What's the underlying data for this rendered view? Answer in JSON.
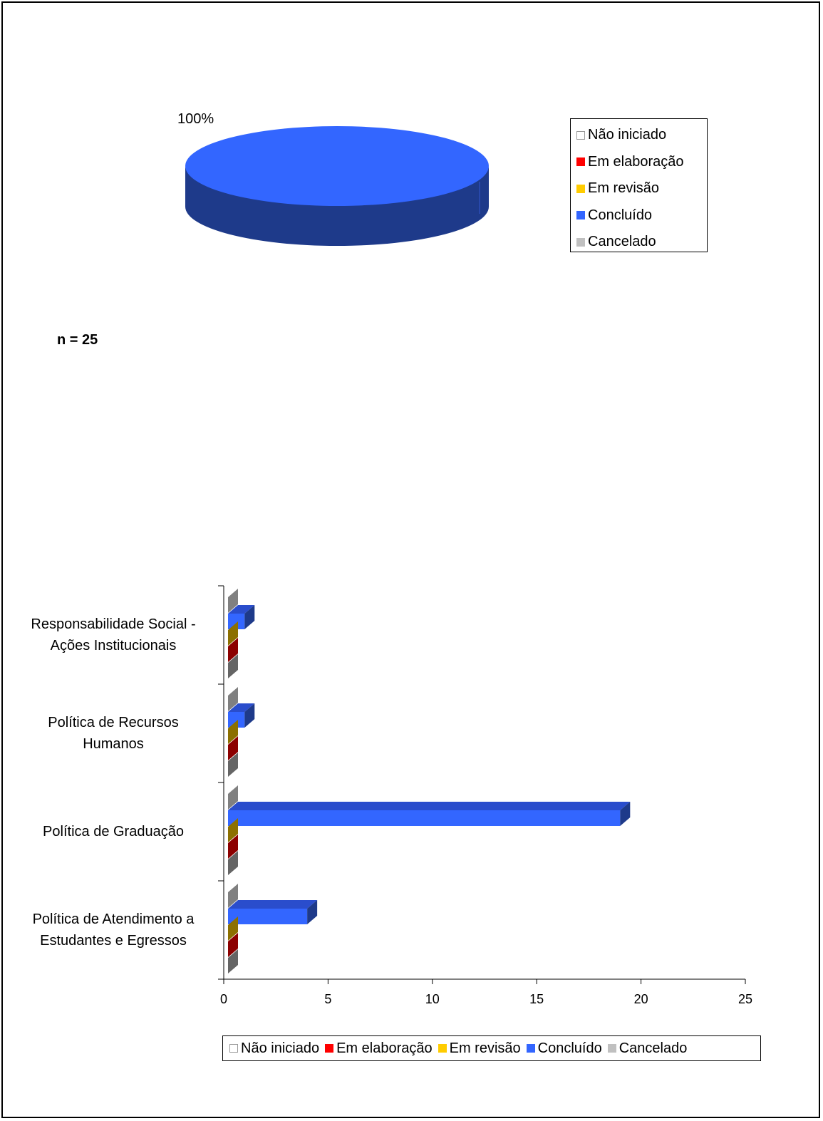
{
  "pie": {
    "percent_label": "100%",
    "legend": [
      {
        "label": "Não iniciado",
        "color": "#ffffff"
      },
      {
        "label": "Em elaboração",
        "color": "#ff0000"
      },
      {
        "label": "Em revisão",
        "color": "#ffcc00"
      },
      {
        "label": "Concluído",
        "color": "#3366ff"
      },
      {
        "label": "Cancelado",
        "color": "#c0c0c0"
      }
    ]
  },
  "n_label": "n = 25",
  "chart_data": [
    {
      "type": "pie",
      "slices": [
        {
          "label": "Não iniciado",
          "value": 0
        },
        {
          "label": "Em elaboração",
          "value": 0
        },
        {
          "label": "Em revisão",
          "value": 0
        },
        {
          "label": "Concluído",
          "value": 100
        },
        {
          "label": "Cancelado",
          "value": 0
        }
      ],
      "data_labels": [
        "100%"
      ],
      "legend_position": "right"
    },
    {
      "type": "bar",
      "orientation": "horizontal",
      "categories": [
        "Responsabilidade Social - Ações Institucionais",
        "Política de Recursos Humanos",
        "Política de Graduação",
        "Política de Atendimento a Estudantes e Egressos"
      ],
      "series": [
        {
          "name": "Não iniciado",
          "color": "#ffffff",
          "values": [
            0,
            0,
            0,
            0
          ]
        },
        {
          "name": "Em elaboração",
          "color": "#ff0000",
          "values": [
            0,
            0,
            0,
            0
          ]
        },
        {
          "name": "Em revisão",
          "color": "#ffcc00",
          "values": [
            0,
            0,
            0,
            0
          ]
        },
        {
          "name": "Concluído",
          "color": "#3366ff",
          "values": [
            1,
            1,
            19,
            4
          ]
        },
        {
          "name": "Cancelado",
          "color": "#c0c0c0",
          "values": [
            0,
            0,
            0,
            0
          ]
        }
      ],
      "xlim": [
        0,
        25
      ],
      "xticks": [
        "0",
        "5",
        "10",
        "15",
        "20",
        "25"
      ],
      "legend_position": "bottom"
    }
  ]
}
